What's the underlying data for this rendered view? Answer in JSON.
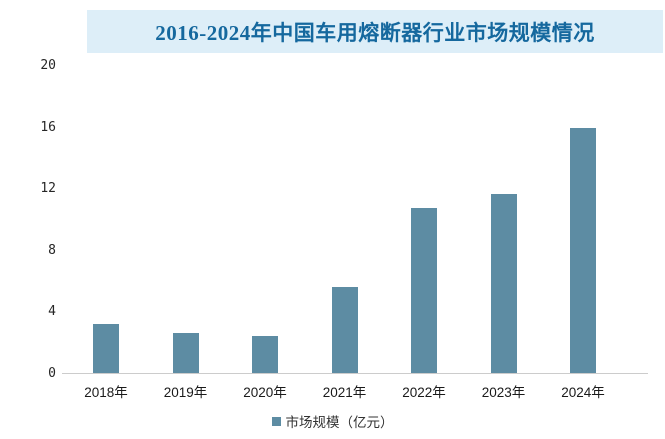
{
  "banner": {
    "title": "2016-2024年中国车用熔断器行业市场规模情况",
    "bg_color": "#ddeef8",
    "text_color": "#15689e"
  },
  "chart_data": {
    "type": "bar",
    "title": "2016-2024年中国车用熔断器行业市场规模情况",
    "categories": [
      "2018年",
      "2019年",
      "2020年",
      "2021年",
      "2022年",
      "2023年",
      "2024年"
    ],
    "values": [
      3.2,
      2.6,
      2.4,
      5.6,
      10.7,
      11.6,
      15.9
    ],
    "xlabel": "",
    "ylabel": "",
    "ylim": [
      0,
      20
    ],
    "yticks": [
      0,
      4,
      8,
      12,
      16,
      20
    ],
    "grid": false,
    "bar_color": "#5d8ca3",
    "axis_line_color": "#cccccc",
    "legend_position": "bottom"
  },
  "legend": {
    "label": "市场规模（亿元）",
    "marker_color": "#5d8ca3"
  }
}
